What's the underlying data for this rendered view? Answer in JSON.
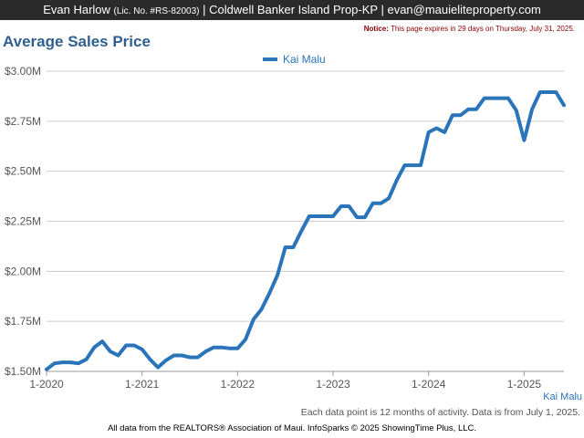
{
  "header": {
    "agent_name": "Evan Harlow",
    "license": "(Lic. No. #RS-82003)",
    "brokerage": "| Coldwell Banker Island Prop-KP |",
    "email": "evan@mauieliteproperty.com"
  },
  "notice": {
    "label": "Notice:",
    "text": "This page expires in 29 days on Thursday, July 31, 2025."
  },
  "footnote": "Each data point is 12 months of activity. Data is from July 1, 2025.",
  "series_label_bottom": "Kai Malu",
  "source": "All data from the REALTORS® Association of Maui. InfoSparks © 2025 ShowingTime Plus, LLC.",
  "colors": {
    "series": "#2a74b9",
    "title": "#2f5f8f",
    "topbar": "#2b2b2b",
    "grid": "#cccccc"
  },
  "chart_data": {
    "type": "line",
    "title": "Average Sales Price",
    "xlabel": "",
    "ylabel": "",
    "ylim": [
      1.5,
      3.0
    ],
    "xlim": [
      "2020-01",
      "2025-06"
    ],
    "y_ticks": [
      "$1.50M",
      "$1.75M",
      "$2.00M",
      "$2.25M",
      "$2.50M",
      "$2.75M",
      "$3.00M"
    ],
    "x_ticks": [
      "1-2020",
      "1-2021",
      "1-2022",
      "1-2023",
      "1-2024",
      "1-2025"
    ],
    "grid": true,
    "legend_position": "top-center",
    "series": [
      {
        "name": "Kai Malu",
        "color": "#2a74b9",
        "x": [
          "2020-01",
          "2020-02",
          "2020-03",
          "2020-04",
          "2020-05",
          "2020-06",
          "2020-07",
          "2020-08",
          "2020-09",
          "2020-10",
          "2020-11",
          "2020-12",
          "2021-01",
          "2021-02",
          "2021-03",
          "2021-04",
          "2021-05",
          "2021-06",
          "2021-07",
          "2021-08",
          "2021-09",
          "2021-10",
          "2021-11",
          "2021-12",
          "2022-01",
          "2022-02",
          "2022-03",
          "2022-04",
          "2022-05",
          "2022-06",
          "2022-07",
          "2022-08",
          "2022-09",
          "2022-10",
          "2022-11",
          "2022-12",
          "2023-01",
          "2023-02",
          "2023-03",
          "2023-04",
          "2023-05",
          "2023-06",
          "2023-07",
          "2023-08",
          "2023-09",
          "2023-10",
          "2023-11",
          "2023-12",
          "2024-01",
          "2024-02",
          "2024-03",
          "2024-04",
          "2024-05",
          "2024-06",
          "2024-07",
          "2024-08",
          "2024-09",
          "2024-10",
          "2024-11",
          "2024-12",
          "2025-01",
          "2025-02",
          "2025-03",
          "2025-04",
          "2025-05",
          "2025-06"
        ],
        "values": [
          1.51,
          1.54,
          1.545,
          1.545,
          1.54,
          1.56,
          1.62,
          1.65,
          1.6,
          1.58,
          1.63,
          1.63,
          1.61,
          1.56,
          1.52,
          1.555,
          1.58,
          1.58,
          1.57,
          1.57,
          1.6,
          1.62,
          1.62,
          1.615,
          1.615,
          1.66,
          1.76,
          1.81,
          1.89,
          1.98,
          2.12,
          2.12,
          2.2,
          2.275,
          2.275,
          2.275,
          2.275,
          2.325,
          2.325,
          2.27,
          2.27,
          2.34,
          2.34,
          2.365,
          2.455,
          2.53,
          2.53,
          2.53,
          2.695,
          2.715,
          2.695,
          2.78,
          2.78,
          2.81,
          2.81,
          2.865,
          2.865,
          2.865,
          2.865,
          2.805,
          2.655,
          2.81,
          2.895,
          2.895,
          2.895,
          2.83
        ]
      }
    ]
  }
}
